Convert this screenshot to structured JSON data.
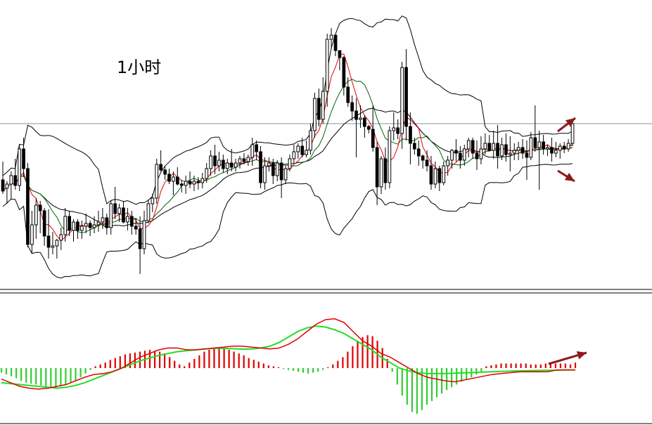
{
  "chart_data": [
    {
      "type": "candlestick",
      "title": "1小时",
      "indicators": [
        "bollinger_bands",
        "moving_average_fast",
        "moving_average_slow"
      ],
      "colors": {
        "candle": "#000000",
        "band": "#000000",
        "ma_fast": "#e00000",
        "ma_slow": "#006400",
        "price_line": "#7f94a6",
        "arrow": "#8b1a1a"
      },
      "price_line_level": 176,
      "ylim": [
        400,
        0
      ],
      "candles": [
        [
          256,
          230,
          276,
          272
        ],
        [
          268,
          258,
          290,
          262
        ],
        [
          262,
          244,
          284,
          250
        ],
        [
          250,
          226,
          270,
          264
        ],
        [
          264,
          206,
          272,
          212
        ],
        [
          212,
          196,
          252,
          240
        ],
        [
          240,
          232,
          352,
          348
        ],
        [
          348,
          300,
          360,
          320
        ],
        [
          320,
          282,
          340,
          292
        ],
        [
          292,
          286,
          332,
          300
        ],
        [
          300,
          296,
          350,
          336
        ],
        [
          336,
          298,
          368,
          352
        ],
        [
          352,
          330,
          362,
          350
        ],
        [
          350,
          340,
          368,
          342
        ],
        [
          342,
          324,
          356,
          334
        ],
        [
          334,
          296,
          344,
          308
        ],
        [
          308,
          300,
          336,
          328
        ],
        [
          328,
          312,
          344,
          316
        ],
        [
          316,
          312,
          340,
          328
        ],
        [
          328,
          314,
          340,
          322
        ],
        [
          322,
          304,
          332,
          318
        ],
        [
          318,
          314,
          336,
          324
        ],
        [
          324,
          308,
          332,
          320
        ],
        [
          320,
          300,
          330,
          316
        ],
        [
          316,
          296,
          326,
          310
        ],
        [
          310,
          304,
          334,
          324
        ],
        [
          324,
          286,
          334,
          290
        ],
        [
          290,
          266,
          312,
          304
        ],
        [
          304,
          290,
          316,
          296
        ],
        [
          296,
          286,
          318,
          316
        ],
        [
          316,
          296,
          328,
          308
        ],
        [
          308,
          300,
          334,
          322
        ],
        [
          322,
          310,
          334,
          326
        ],
        [
          326,
          308,
          390,
          354
        ],
        [
          354,
          300,
          362,
          314
        ],
        [
          314,
          284,
          318,
          290
        ],
        [
          290,
          276,
          302,
          282
        ],
        [
          282,
          226,
          290,
          234
        ],
        [
          234,
          214,
          244,
          242
        ],
        [
          242,
          236,
          256,
          248
        ],
        [
          248,
          240,
          262,
          258
        ],
        [
          258,
          244,
          278,
          252
        ],
        [
          252,
          238,
          264,
          262
        ],
        [
          262,
          256,
          274,
          264
        ],
        [
          264,
          250,
          276,
          258
        ],
        [
          258,
          244,
          268,
          262
        ],
        [
          262,
          250,
          272,
          258
        ],
        [
          258,
          252,
          270,
          260
        ],
        [
          260,
          246,
          268,
          254
        ],
        [
          254,
          232,
          260,
          240
        ],
        [
          240,
          214,
          250,
          222
        ],
        [
          222,
          206,
          248,
          236
        ],
        [
          236,
          216,
          244,
          228
        ],
        [
          228,
          220,
          246,
          240
        ],
        [
          240,
          226,
          248,
          232
        ],
        [
          232,
          212,
          244,
          238
        ],
        [
          238,
          226,
          244,
          232
        ],
        [
          232,
          222,
          240,
          226
        ],
        [
          226,
          218,
          234,
          230
        ],
        [
          230,
          220,
          236,
          224
        ],
        [
          224,
          196,
          236,
          206
        ],
        [
          206,
          200,
          228,
          216
        ],
        [
          216,
          208,
          268,
          260
        ],
        [
          260,
          224,
          270,
          236
        ],
        [
          236,
          224,
          244,
          232
        ],
        [
          232,
          226,
          262,
          250
        ],
        [
          250,
          228,
          258,
          232
        ],
        [
          232,
          224,
          282,
          256
        ],
        [
          256,
          236,
          262,
          240
        ],
        [
          240,
          220,
          244,
          226
        ],
        [
          226,
          206,
          232,
          216
        ],
        [
          216,
          204,
          226,
          208
        ],
        [
          208,
          196,
          224,
          220
        ],
        [
          220,
          200,
          224,
          214
        ],
        [
          214,
          176,
          220,
          186
        ],
        [
          186,
          132,
          196,
          140
        ],
        [
          140,
          126,
          180,
          170
        ],
        [
          170,
          110,
          176,
          130
        ],
        [
          130,
          48,
          152,
          56
        ],
        [
          56,
          40,
          70,
          50
        ],
        [
          50,
          60,
          80,
          72
        ],
        [
          72,
          74,
          100,
          82
        ],
        [
          82,
          80,
          136,
          124
        ],
        [
          124,
          110,
          152,
          146
        ],
        [
          146,
          136,
          172,
          158
        ],
        [
          158,
          140,
          224,
          170
        ],
        [
          170,
          150,
          182,
          168
        ],
        [
          168,
          164,
          196,
          180
        ],
        [
          180,
          178,
          190,
          184
        ],
        [
          184,
          150,
          216,
          210
        ],
        [
          210,
          202,
          292,
          266
        ],
        [
          266,
          222,
          276,
          226
        ],
        [
          226,
          210,
          270,
          260
        ],
        [
          260,
          180,
          268,
          186
        ],
        [
          186,
          160,
          200,
          182
        ],
        [
          182,
          170,
          198,
          190
        ],
        [
          190,
          88,
          212,
          96
        ],
        [
          96,
          70,
          200,
          180
        ],
        [
          180,
          160,
          234,
          204
        ],
        [
          204,
          196,
          220,
          212
        ],
        [
          212,
          200,
          236,
          222
        ],
        [
          222,
          220,
          240,
          228
        ],
        [
          228,
          214,
          244,
          236
        ],
        [
          236,
          222,
          270,
          262
        ],
        [
          262,
          230,
          268,
          240
        ],
        [
          240,
          236,
          272,
          260
        ],
        [
          260,
          230,
          264,
          236
        ],
        [
          236,
          222,
          250,
          228
        ],
        [
          228,
          212,
          240,
          214
        ],
        [
          214,
          198,
          230,
          218
        ],
        [
          218,
          208,
          240,
          228
        ],
        [
          228,
          206,
          236,
          212
        ],
        [
          212,
          196,
          224,
          200
        ],
        [
          200,
          196,
          226,
          218
        ],
        [
          218,
          200,
          242,
          226
        ],
        [
          226,
          194,
          234,
          212
        ],
        [
          212,
          190,
          220,
          204
        ],
        [
          204,
          192,
          216,
          214
        ],
        [
          214,
          186,
          226,
          204
        ],
        [
          204,
          178,
          240,
          222
        ],
        [
          222,
          196,
          228,
          206
        ],
        [
          206,
          190,
          230,
          220
        ],
        [
          220,
          194,
          244,
          218
        ],
        [
          218,
          204,
          228,
          214
        ],
        [
          214,
          202,
          228,
          210
        ],
        [
          210,
          198,
          226,
          218
        ],
        [
          218,
          200,
          256,
          224
        ],
        [
          224,
          188,
          228,
          196
        ],
        [
          196,
          150,
          216,
          210
        ],
        [
          210,
          186,
          270,
          202
        ],
        [
          202,
          192,
          220,
          212
        ],
        [
          212,
          206,
          222,
          210
        ],
        [
          210,
          196,
          230,
          218
        ],
        [
          218,
          202,
          224,
          214
        ],
        [
          214,
          204,
          226,
          208
        ],
        [
          208,
          202,
          218,
          212
        ],
        [
          212,
          198,
          216,
          204
        ],
        [
          204,
          170,
          208,
          176
        ]
      ],
      "arrows": [
        "up",
        "down"
      ]
    },
    {
      "type": "macd",
      "colors": {
        "hist_positive": "#e00000",
        "hist_negative": "#33cc33",
        "line_dif": "#e00000",
        "line_dea": "#22dd22",
        "arrow": "#8b1a1a"
      },
      "ylim": [
        -3,
        3
      ],
      "histogram": [
        -0.25,
        -0.35,
        -0.45,
        -0.55,
        -0.7,
        -0.8,
        -0.85,
        -0.9,
        -0.95,
        -1.0,
        -1.05,
        -1.1,
        -1.0,
        -0.9,
        -0.8,
        -0.7,
        -0.5,
        -0.3,
        -0.1,
        0.1,
        0.2,
        0.3,
        0.45,
        0.55,
        0.65,
        0.75,
        0.8,
        0.85,
        0.9,
        0.95,
        1.0,
        0.95,
        0.9,
        0.8,
        0.6,
        0.4,
        0.2,
        0.1,
        0.3,
        0.5,
        0.7,
        0.9,
        1.0,
        1.1,
        1.15,
        1.1,
        1.0,
        0.9,
        0.8,
        0.7,
        0.55,
        0.45,
        0.35,
        0.25,
        0.15,
        0.1,
        0.05,
        -0.05,
        -0.1,
        -0.15,
        -0.2,
        -0.25,
        -0.3,
        -0.25,
        -0.2,
        -0.1,
        0.05,
        0.2,
        0.4,
        0.6,
        0.9,
        1.2,
        1.5,
        1.7,
        1.8,
        1.75,
        1.5,
        1.1,
        0.5,
        -0.2,
        -0.9,
        -1.5,
        -2.0,
        -2.4,
        -2.5,
        -2.3,
        -2.0,
        -1.8,
        -1.6,
        -1.4,
        -1.2,
        -1.05,
        -0.9,
        -0.75,
        -0.6,
        -0.5,
        -0.35,
        -0.2,
        0.1,
        0.15,
        0.2,
        0.25,
        0.25,
        0.25,
        0.25,
        0.25,
        0.25,
        0.2,
        0.2,
        0.2,
        0.25,
        0.25,
        0.25,
        0.25,
        0.25,
        0.2,
        0.3
      ],
      "dif": [
        -0.6,
        -0.8,
        -1.0,
        -1.1,
        -1.15,
        -1.1,
        -1.0,
        -0.9,
        -0.7,
        -0.5,
        -0.35,
        -0.3,
        -0.2,
        0.0,
        0.3,
        0.6,
        0.8,
        1.0,
        1.1,
        1.1,
        1.0,
        1.0,
        1.05,
        1.1,
        1.15,
        1.2,
        1.2,
        1.15,
        1.1,
        1.05,
        1.1,
        1.3,
        1.6,
        2.0,
        2.4,
        2.65,
        2.7,
        2.5,
        2.0,
        1.5,
        1.2,
        0.8,
        0.6,
        0.3,
        0.0,
        -0.3,
        -0.5,
        -0.6,
        -0.7,
        -0.75,
        -0.65,
        -0.55,
        -0.45,
        -0.35,
        -0.3,
        -0.25,
        -0.2,
        -0.2,
        -0.2,
        -0.2,
        -0.1,
        -0.1,
        -0.1
      ],
      "dea": [
        -0.8,
        -0.85,
        -0.9,
        -0.95,
        -1.0,
        -1.05,
        -1.1,
        -1.05,
        -0.95,
        -0.8,
        -0.6,
        -0.4,
        -0.2,
        0.0,
        0.2,
        0.4,
        0.55,
        0.7,
        0.8,
        0.9,
        0.95,
        1.0,
        1.05,
        1.08,
        1.08,
        1.06,
        1.04,
        1.05,
        1.1,
        1.2,
        1.4,
        1.7,
        2.0,
        2.2,
        2.3,
        2.25,
        2.1,
        1.9,
        1.6,
        1.3,
        1.0,
        0.6,
        0.3,
        0.0,
        -0.15,
        -0.25,
        -0.3,
        -0.3,
        -0.3,
        -0.28,
        -0.26,
        -0.24,
        -0.22,
        -0.2,
        -0.18,
        -0.16,
        -0.15,
        -0.14,
        -0.13,
        -0.12,
        -0.12,
        -0.1,
        -0.1
      ],
      "arrows": [
        "up"
      ]
    }
  ]
}
